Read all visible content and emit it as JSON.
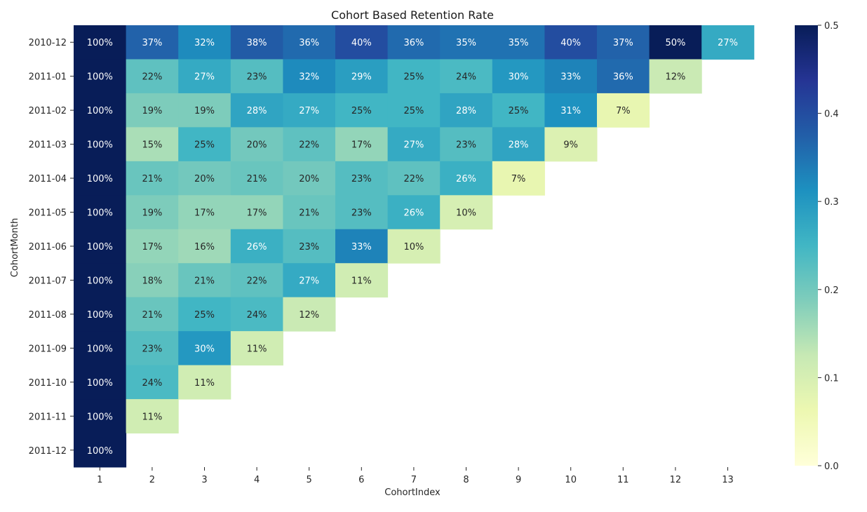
{
  "chart_data": {
    "type": "heatmap",
    "title": "Cohort Based Retention Rate",
    "xlabel": "CohortIndex",
    "ylabel": "CohortMonth",
    "x_categories": [
      "1",
      "2",
      "3",
      "4",
      "5",
      "6",
      "7",
      "8",
      "9",
      "10",
      "11",
      "12",
      "13"
    ],
    "y_categories": [
      "2010-12",
      "2011-01",
      "2011-02",
      "2011-03",
      "2011-04",
      "2011-05",
      "2011-06",
      "2011-07",
      "2011-08",
      "2011-09",
      "2011-10",
      "2011-11",
      "2011-12"
    ],
    "values": [
      [
        1.0,
        0.37,
        0.32,
        0.38,
        0.36,
        0.4,
        0.36,
        0.35,
        0.35,
        0.4,
        0.37,
        0.5,
        0.27
      ],
      [
        1.0,
        0.22,
        0.27,
        0.23,
        0.32,
        0.29,
        0.25,
        0.24,
        0.3,
        0.33,
        0.36,
        0.12
      ],
      [
        1.0,
        0.19,
        0.19,
        0.28,
        0.27,
        0.25,
        0.25,
        0.28,
        0.25,
        0.31,
        0.07
      ],
      [
        1.0,
        0.15,
        0.25,
        0.2,
        0.22,
        0.17,
        0.27,
        0.23,
        0.28,
        0.09
      ],
      [
        1.0,
        0.21,
        0.2,
        0.21,
        0.2,
        0.23,
        0.22,
        0.26,
        0.07
      ],
      [
        1.0,
        0.19,
        0.17,
        0.17,
        0.21,
        0.23,
        0.26,
        0.1
      ],
      [
        1.0,
        0.17,
        0.16,
        0.26,
        0.23,
        0.33,
        0.1
      ],
      [
        1.0,
        0.18,
        0.21,
        0.22,
        0.27,
        0.11
      ],
      [
        1.0,
        0.21,
        0.25,
        0.24,
        0.12
      ],
      [
        1.0,
        0.23,
        0.3,
        0.11
      ],
      [
        1.0,
        0.24,
        0.11
      ],
      [
        1.0,
        0.11
      ],
      [
        1.0
      ]
    ],
    "labels": [
      [
        "100%",
        "37%",
        "32%",
        "38%",
        "36%",
        "40%",
        "36%",
        "35%",
        "35%",
        "40%",
        "37%",
        "50%",
        "27%"
      ],
      [
        "100%",
        "22%",
        "27%",
        "23%",
        "32%",
        "29%",
        "25%",
        "24%",
        "30%",
        "33%",
        "36%",
        "12%"
      ],
      [
        "100%",
        "19%",
        "19%",
        "28%",
        "27%",
        "25%",
        "25%",
        "28%",
        "25%",
        "31%",
        "7%"
      ],
      [
        "100%",
        "15%",
        "25%",
        "20%",
        "22%",
        "17%",
        "27%",
        "23%",
        "28%",
        "9%"
      ],
      [
        "100%",
        "21%",
        "20%",
        "21%",
        "20%",
        "23%",
        "22%",
        "26%",
        "7%"
      ],
      [
        "100%",
        "19%",
        "17%",
        "17%",
        "21%",
        "23%",
        "26%",
        "10%"
      ],
      [
        "100%",
        "17%",
        "16%",
        "26%",
        "23%",
        "33%",
        "10%"
      ],
      [
        "100%",
        "18%",
        "21%",
        "22%",
        "27%",
        "11%"
      ],
      [
        "100%",
        "21%",
        "25%",
        "24%",
        "12%"
      ],
      [
        "100%",
        "23%",
        "30%",
        "11%"
      ],
      [
        "100%",
        "24%",
        "11%"
      ],
      [
        "100%",
        "11%"
      ],
      [
        "100%"
      ]
    ],
    "colormap": "YlGnBu",
    "color_range": [
      0.0,
      0.5
    ],
    "colorbar_ticks": [
      "0.0",
      "0.1",
      "0.2",
      "0.3",
      "0.4",
      "0.5"
    ],
    "colorbar_tick_values": [
      0.0,
      0.1,
      0.2,
      0.3,
      0.4,
      0.5
    ],
    "grid": false,
    "legend": "colorbar-right"
  }
}
